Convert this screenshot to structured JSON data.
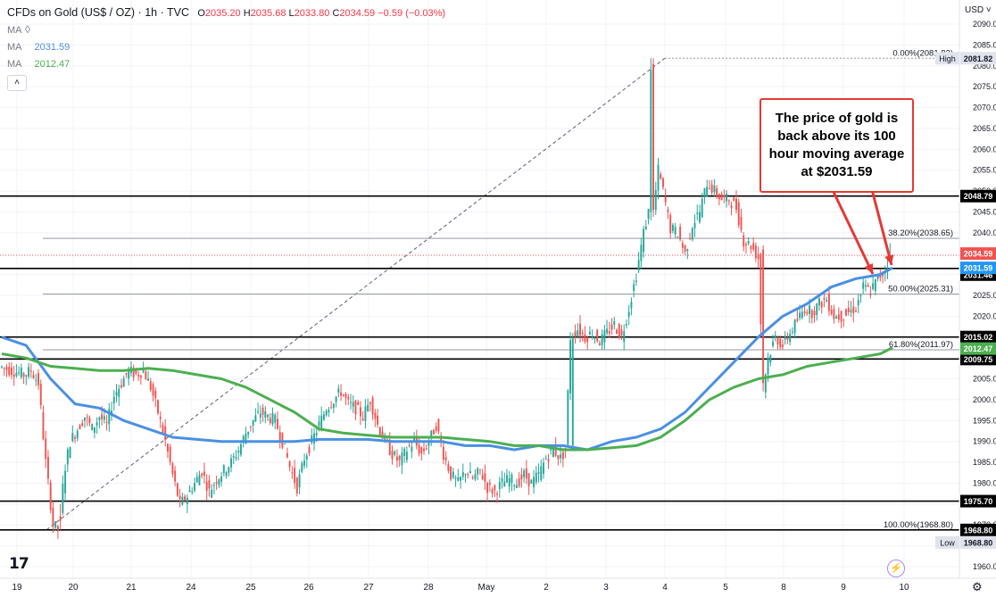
{
  "header": {
    "symbol": "CFDs on Gold (US$ / OZ) · 1h · TVC",
    "open_label": "O",
    "open": "2035.20",
    "high_label": "H",
    "high": "2035.68",
    "low_label": "L",
    "low": "2033.80",
    "close_label": "C",
    "close": "2034.59",
    "change": "−0.59 (−0.03%)"
  },
  "indicators": [
    {
      "label": "MA",
      "value": ""
    },
    {
      "label": "MA",
      "value": "2031.59",
      "color": "#4a90e2"
    },
    {
      "label": "MA",
      "value": "2012.47",
      "color": "#4caf50"
    }
  ],
  "currency": "USD",
  "callout": "The price of gold is back above its 100 hour moving average at $2031.59",
  "colors": {
    "up": "#26a69a",
    "down": "#ef5350",
    "ma100": "#4a90e2",
    "ma200": "#4caf50",
    "annotation": "#e53935"
  },
  "chart_data": {
    "type": "candlestick",
    "x_labels": [
      "19",
      "20",
      "21",
      "24",
      "25",
      "26",
      "27",
      "28",
      "May",
      "2",
      "3",
      "4",
      "5",
      "8",
      "9",
      "10"
    ],
    "ylim": [
      1955,
      2095
    ],
    "y_ticks": [
      1960,
      1965,
      1970,
      1975,
      1980,
      1985,
      1990,
      1995,
      2000,
      2005,
      2010,
      2015,
      2020,
      2025,
      2030,
      2035,
      2040,
      2045,
      2050,
      2055,
      2060,
      2065,
      2070,
      2075,
      2080,
      2085,
      2090
    ],
    "y_tick_labels": [
      "1960.00",
      "1965.00",
      "1970.00",
      "1975.00",
      "1980.00",
      "1985.00",
      "1990.00",
      "1995.00",
      "2000.00",
      "2005.00",
      "2010.00",
      "2015.00",
      "2020.00",
      "2025.00",
      "2030.00",
      "2035.00",
      "2040.00",
      "2045.00",
      "2050.00",
      "2055.00",
      "2060.00",
      "2065.00",
      "2070.00",
      "2075.00",
      "2080.00",
      "2085.00",
      "2090.00"
    ],
    "price_path": [
      [
        0,
        2008
      ],
      [
        5,
        2007
      ],
      [
        10,
        2006
      ],
      [
        13,
        2007
      ],
      [
        16,
        2004
      ],
      [
        19,
        1985
      ],
      [
        22,
        1970
      ],
      [
        24,
        1969
      ],
      [
        27,
        1984
      ],
      [
        29,
        1990
      ],
      [
        32,
        1993
      ],
      [
        35,
        1996
      ],
      [
        38,
        1993
      ],
      [
        41,
        1996
      ],
      [
        44,
        1994
      ],
      [
        47,
        2001
      ],
      [
        50,
        2004
      ],
      [
        53,
        2007
      ],
      [
        56,
        2006
      ],
      [
        59,
        2007
      ],
      [
        62,
        2003
      ],
      [
        65,
        1997
      ],
      [
        68,
        1990
      ],
      [
        71,
        1982
      ],
      [
        74,
        1975
      ],
      [
        77,
        1977
      ],
      [
        80,
        1980
      ],
      [
        83,
        1983
      ],
      [
        86,
        1978
      ],
      [
        89,
        1981
      ],
      [
        92,
        1983
      ],
      [
        95,
        1985
      ],
      [
        98,
        1988
      ],
      [
        101,
        1992
      ],
      [
        104,
        1995
      ],
      [
        107,
        1997
      ],
      [
        110,
        1996
      ],
      [
        113,
        1995
      ],
      [
        116,
        1990
      ],
      [
        119,
        1984
      ],
      [
        122,
        1979
      ],
      [
        125,
        1986
      ],
      [
        128,
        1990
      ],
      [
        131,
        1994
      ],
      [
        134,
        1998
      ],
      [
        137,
        2000
      ],
      [
        140,
        2002
      ],
      [
        143,
        1999
      ],
      [
        146,
        1998
      ],
      [
        149,
        1996
      ],
      [
        152,
        2000
      ],
      [
        155,
        1994
      ],
      [
        158,
        1990
      ],
      [
        161,
        1987
      ],
      [
        164,
        1985
      ],
      [
        167,
        1988
      ],
      [
        170,
        1990
      ],
      [
        173,
        1987
      ],
      [
        176,
        1990
      ],
      [
        179,
        1994
      ],
      [
        182,
        1987
      ],
      [
        185,
        1982
      ],
      [
        188,
        1980
      ],
      [
        191,
        1983
      ],
      [
        194,
        1981
      ],
      [
        197,
        1983
      ],
      [
        200,
        1979
      ],
      [
        203,
        1978
      ],
      [
        206,
        1980
      ],
      [
        209,
        1981
      ],
      [
        212,
        1980
      ],
      [
        215,
        1982
      ],
      [
        218,
        1980
      ],
      [
        221,
        1982
      ],
      [
        224,
        1986
      ],
      [
        227,
        1988
      ],
      [
        230,
        1986
      ],
      [
        232,
        1988
      ],
      [
        234,
        2015
      ],
      [
        237,
        2017
      ],
      [
        240,
        2015
      ],
      [
        243,
        2016
      ],
      [
        246,
        2014
      ],
      [
        249,
        2016
      ],
      [
        252,
        2018
      ],
      [
        255,
        2015
      ],
      [
        258,
        2022
      ],
      [
        261,
        2030
      ],
      [
        264,
        2040
      ],
      [
        266,
        2045
      ],
      [
        267,
        2079
      ],
      [
        268,
        2045
      ],
      [
        270,
        2055
      ],
      [
        272,
        2050
      ],
      [
        275,
        2041
      ],
      [
        278,
        2040
      ],
      [
        281,
        2035
      ],
      [
        284,
        2042
      ],
      [
        287,
        2045
      ],
      [
        290,
        2052
      ],
      [
        293,
        2050
      ],
      [
        296,
        2048
      ],
      [
        299,
        2048
      ],
      [
        302,
        2046
      ],
      [
        305,
        2038
      ],
      [
        308,
        2037
      ],
      [
        311,
        2034
      ],
      [
        313,
        2003
      ],
      [
        315,
        2010
      ],
      [
        318,
        2015
      ],
      [
        321,
        2013
      ],
      [
        324,
        2016
      ],
      [
        327,
        2019
      ],
      [
        330,
        2022
      ],
      [
        333,
        2021
      ],
      [
        336,
        2023
      ],
      [
        339,
        2024
      ],
      [
        342,
        2020
      ],
      [
        345,
        2020
      ],
      [
        348,
        2021
      ],
      [
        351,
        2022
      ],
      [
        354,
        2027
      ],
      [
        357,
        2026
      ],
      [
        360,
        2029
      ],
      [
        363,
        2031
      ],
      [
        365,
        2034.59
      ]
    ],
    "series": [
      {
        "name": "MA",
        "color": "#4a90e2",
        "points": [
          [
            0,
            2015
          ],
          [
            10,
            2013
          ],
          [
            20,
            2005
          ],
          [
            30,
            1999
          ],
          [
            40,
            1998
          ],
          [
            50,
            1995
          ],
          [
            60,
            1993
          ],
          [
            70,
            1991
          ],
          [
            80,
            1990.5
          ],
          [
            90,
            1990
          ],
          [
            100,
            1990
          ],
          [
            110,
            1990
          ],
          [
            120,
            1990
          ],
          [
            130,
            1990.5
          ],
          [
            140,
            1990.5
          ],
          [
            150,
            1990.5
          ],
          [
            160,
            1990
          ],
          [
            170,
            1990
          ],
          [
            180,
            1990
          ],
          [
            190,
            1989
          ],
          [
            200,
            1989
          ],
          [
            210,
            1988
          ],
          [
            220,
            1989
          ],
          [
            230,
            1989
          ],
          [
            240,
            1988
          ],
          [
            250,
            1990
          ],
          [
            260,
            1991
          ],
          [
            270,
            1993
          ],
          [
            280,
            1997
          ],
          [
            290,
            2003
          ],
          [
            300,
            2009
          ],
          [
            310,
            2015
          ],
          [
            320,
            2020
          ],
          [
            330,
            2023
          ],
          [
            340,
            2027
          ],
          [
            350,
            2029
          ],
          [
            360,
            2030
          ],
          [
            365,
            2031.59
          ]
        ]
      },
      {
        "name": "MA",
        "color": "#4caf50",
        "points": [
          [
            0,
            2011
          ],
          [
            10,
            2010
          ],
          [
            20,
            2008
          ],
          [
            30,
            2007.5
          ],
          [
            40,
            2007
          ],
          [
            50,
            2007
          ],
          [
            60,
            2007.5
          ],
          [
            70,
            2007
          ],
          [
            80,
            2006
          ],
          [
            90,
            2005
          ],
          [
            100,
            2003
          ],
          [
            110,
            2000
          ],
          [
            120,
            1997
          ],
          [
            130,
            1993
          ],
          [
            140,
            1992
          ],
          [
            150,
            1991.5
          ],
          [
            160,
            1991
          ],
          [
            170,
            1991
          ],
          [
            180,
            1991
          ],
          [
            190,
            1990.5
          ],
          [
            200,
            1990
          ],
          [
            210,
            1989
          ],
          [
            220,
            1989
          ],
          [
            230,
            1988
          ],
          [
            240,
            1988
          ],
          [
            250,
            1988.5
          ],
          [
            260,
            1989
          ],
          [
            270,
            1991
          ],
          [
            280,
            1995
          ],
          [
            290,
            2000
          ],
          [
            300,
            2003
          ],
          [
            310,
            2005
          ],
          [
            320,
            2006
          ],
          [
            330,
            2008
          ],
          [
            340,
            2009
          ],
          [
            350,
            2010
          ],
          [
            360,
            2011
          ],
          [
            365,
            2012.47
          ]
        ]
      }
    ],
    "horizontal_levels": [
      {
        "value": 2048.79,
        "label": "2048.79",
        "style": "black"
      },
      {
        "value": 2031.46,
        "label": "2031.46",
        "style": "black"
      },
      {
        "value": 2015.02,
        "label": "2015.02",
        "style": "black"
      },
      {
        "value": 2009.75,
        "label": "2009.75",
        "style": "black"
      },
      {
        "value": 1975.7,
        "label": "1975.70",
        "style": "black"
      },
      {
        "value": 1968.8,
        "label": "1968.80",
        "style": "black"
      }
    ],
    "fib_levels": [
      {
        "value": 2081.82,
        "text": "0.00%(2081.82)"
      },
      {
        "value": 2038.65,
        "text": "38.20%(2038.65)"
      },
      {
        "value": 2025.31,
        "text": "50.00%(2025.31)"
      },
      {
        "value": 2011.97,
        "text": "61.80%(2011.97)"
      },
      {
        "value": 1968.8,
        "text": "100.00%(1968.80)"
      }
    ],
    "price_tags": [
      {
        "value": 2081.82,
        "label": "2081.82",
        "tag": "High",
        "style": "grey"
      },
      {
        "value": 2034.59,
        "label": "2034.59",
        "style": "red"
      },
      {
        "value": 2031.59,
        "label": "2031.59",
        "style": "blue"
      },
      {
        "value": 2012.47,
        "label": "2012.47",
        "style": "green"
      },
      {
        "value": 1968.8,
        "label": "1968.80",
        "tag": "Low",
        "style": "grey"
      }
    ]
  }
}
